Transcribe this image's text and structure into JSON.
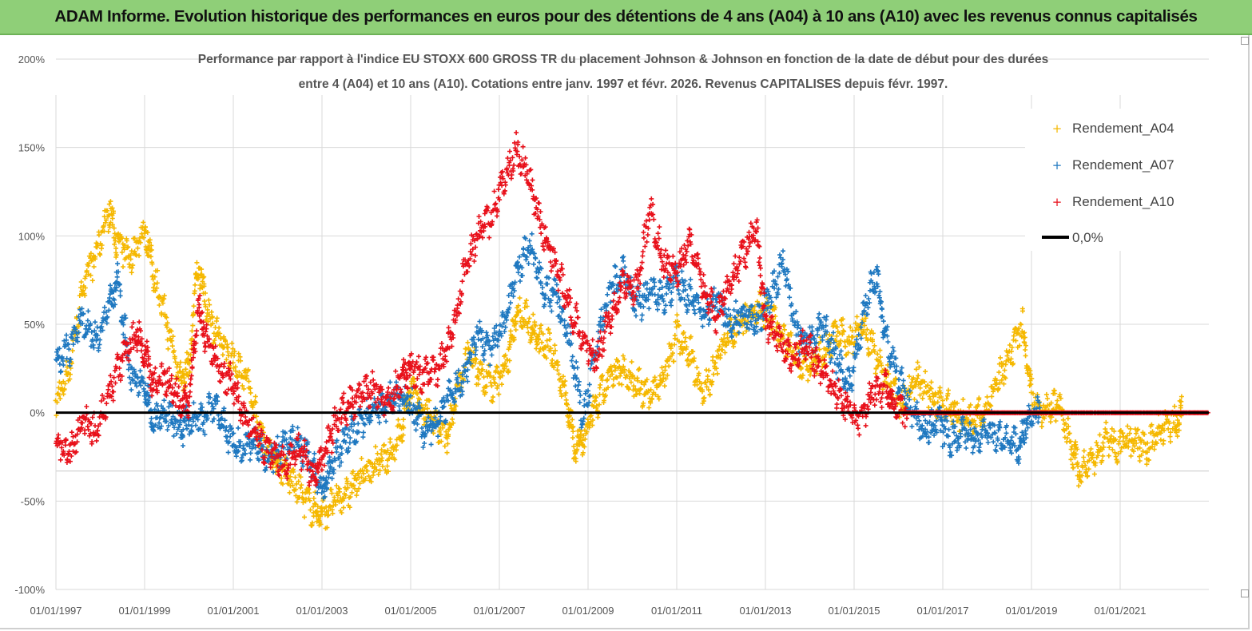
{
  "banner": {
    "title": "ADAM Informe. Evolution historique des performances en euros pour des détentions de 4 ans (A04) à 10 ans (A10) avec les revenus connus capitalisés"
  },
  "chart_data": {
    "type": "scatter",
    "title_line1": "Performance par rapport à l'indice EU STOXX 600 GROSS TR  du placement Johnson & Johnson en fonction de la date de début pour des durées",
    "title_line2": "entre 4 (A04) et 10 ans (A10). Cotations entre janv. 1997 et févr. 2026. Revenus CAPITALISES depuis févr. 1997.",
    "xlabel": "",
    "ylabel": "",
    "xlim": [
      1997.0,
      2023.0
    ],
    "ylim": [
      -100,
      200
    ],
    "x_tick_labels": [
      "01/01/1997",
      "01/01/1999",
      "01/01/2001",
      "01/01/2003",
      "01/01/2005",
      "01/01/2007",
      "01/01/2009",
      "01/01/2011",
      "01/01/2013",
      "01/01/2015",
      "01/01/2017",
      "01/01/2019",
      "01/01/2021"
    ],
    "x_tick_values": [
      1997,
      1999,
      2001,
      2003,
      2005,
      2007,
      2009,
      2011,
      2013,
      2015,
      2017,
      2019,
      2021
    ],
    "y_tick_labels": [
      "200%",
      "150%",
      "100%",
      "50%",
      "0%",
      "-50%",
      "-100%"
    ],
    "y_tick_values": [
      200,
      150,
      100,
      50,
      0,
      -50,
      -100
    ],
    "legend": {
      "position": "top-right",
      "entries": [
        "Rendement_A04",
        "Rendement_A07",
        "Rendement_A10",
        "0,0%"
      ]
    },
    "colors": {
      "A04": "#f5b800",
      "A07": "#1f78c0",
      "A10": "#e8101a",
      "zero_line": "#000000"
    },
    "series": [
      {
        "name": "Rendement_A04",
        "color": "#f5b800",
        "points": [
          [
            1997.0,
            5
          ],
          [
            1997.3,
            25
          ],
          [
            1997.6,
            70
          ],
          [
            1997.9,
            90
          ],
          [
            1998.2,
            115
          ],
          [
            1998.4,
            95
          ],
          [
            1998.7,
            88
          ],
          [
            1999.0,
            105
          ],
          [
            1999.2,
            80
          ],
          [
            1999.5,
            50
          ],
          [
            1999.8,
            20
          ],
          [
            2000.0,
            25
          ],
          [
            2000.2,
            85
          ],
          [
            2000.4,
            60
          ],
          [
            2000.7,
            40
          ],
          [
            2001.0,
            30
          ],
          [
            2001.3,
            20
          ],
          [
            2001.6,
            -10
          ],
          [
            2001.9,
            -25
          ],
          [
            2002.2,
            -35
          ],
          [
            2002.5,
            -45
          ],
          [
            2002.8,
            -55
          ],
          [
            2003.0,
            -58
          ],
          [
            2003.3,
            -50
          ],
          [
            2003.6,
            -45
          ],
          [
            2003.9,
            -35
          ],
          [
            2004.2,
            -30
          ],
          [
            2004.5,
            -25
          ],
          [
            2004.8,
            -10
          ],
          [
            2005.0,
            15
          ],
          [
            2005.2,
            5
          ],
          [
            2005.5,
            -5
          ],
          [
            2005.8,
            -15
          ],
          [
            2006.0,
            5
          ],
          [
            2006.3,
            35
          ],
          [
            2006.6,
            20
          ],
          [
            2006.9,
            15
          ],
          [
            2007.2,
            30
          ],
          [
            2007.4,
            60
          ],
          [
            2007.7,
            50
          ],
          [
            2007.9,
            40
          ],
          [
            2008.2,
            35
          ],
          [
            2008.5,
            10
          ],
          [
            2008.7,
            -20
          ],
          [
            2008.9,
            -15
          ],
          [
            2009.2,
            5
          ],
          [
            2009.5,
            20
          ],
          [
            2009.8,
            25
          ],
          [
            2010.1,
            15
          ],
          [
            2010.4,
            10
          ],
          [
            2010.7,
            20
          ],
          [
            2011.0,
            45
          ],
          [
            2011.3,
            35
          ],
          [
            2011.6,
            10
          ],
          [
            2011.9,
            30
          ],
          [
            2012.2,
            45
          ],
          [
            2012.5,
            50
          ],
          [
            2012.8,
            60
          ],
          [
            2013.1,
            55
          ],
          [
            2013.4,
            45
          ],
          [
            2013.7,
            30
          ],
          [
            2014.0,
            25
          ],
          [
            2014.3,
            35
          ],
          [
            2014.6,
            45
          ],
          [
            2014.9,
            40
          ],
          [
            2015.2,
            50
          ],
          [
            2015.5,
            30
          ],
          [
            2015.8,
            15
          ],
          [
            2016.1,
            5
          ],
          [
            2016.4,
            20
          ],
          [
            2016.7,
            10
          ],
          [
            2017.0,
            5
          ],
          [
            2017.3,
            0
          ],
          [
            2017.6,
            -5
          ],
          [
            2017.9,
            0
          ],
          [
            2018.2,
            15
          ],
          [
            2018.5,
            30
          ],
          [
            2018.8,
            50
          ],
          [
            2019.0,
            10
          ],
          [
            2019.3,
            0
          ],
          [
            2019.6,
            5
          ],
          [
            2019.9,
            -20
          ],
          [
            2020.1,
            -35
          ],
          [
            2020.4,
            -25
          ],
          [
            2020.7,
            -15
          ],
          [
            2021.0,
            -20
          ],
          [
            2021.3,
            -15
          ],
          [
            2021.6,
            -20
          ],
          [
            2021.9,
            -10
          ],
          [
            2022.2,
            -5
          ],
          [
            2022.4,
            0
          ]
        ]
      },
      {
        "name": "Rendement_A07",
        "color": "#1f78c0",
        "points": [
          [
            1997.0,
            30
          ],
          [
            1997.3,
            35
          ],
          [
            1997.6,
            55
          ],
          [
            1997.9,
            40
          ],
          [
            1998.2,
            60
          ],
          [
            1998.4,
            75
          ],
          [
            1998.7,
            20
          ],
          [
            1999.0,
            15
          ],
          [
            1999.2,
            -5
          ],
          [
            1999.5,
            0
          ],
          [
            1999.8,
            -10
          ],
          [
            2000.0,
            -5
          ],
          [
            2000.3,
            -5
          ],
          [
            2000.6,
            5
          ],
          [
            2000.9,
            -15
          ],
          [
            2001.2,
            -20
          ],
          [
            2001.5,
            -15
          ],
          [
            2001.8,
            -25
          ],
          [
            2002.1,
            -20
          ],
          [
            2002.4,
            -15
          ],
          [
            2002.7,
            -25
          ],
          [
            2003.0,
            -45
          ],
          [
            2003.2,
            -30
          ],
          [
            2003.5,
            -15
          ],
          [
            2003.8,
            -10
          ],
          [
            2004.1,
            0
          ],
          [
            2004.4,
            5
          ],
          [
            2004.7,
            10
          ],
          [
            2005.0,
            5
          ],
          [
            2005.3,
            -10
          ],
          [
            2005.6,
            -5
          ],
          [
            2005.9,
            10
          ],
          [
            2006.2,
            20
          ],
          [
            2006.5,
            45
          ],
          [
            2006.8,
            35
          ],
          [
            2007.1,
            50
          ],
          [
            2007.4,
            80
          ],
          [
            2007.7,
            95
          ],
          [
            2008.0,
            70
          ],
          [
            2008.3,
            65
          ],
          [
            2008.6,
            40
          ],
          [
            2008.9,
            -5
          ],
          [
            2009.2,
            40
          ],
          [
            2009.5,
            70
          ],
          [
            2009.8,
            80
          ],
          [
            2010.1,
            60
          ],
          [
            2010.4,
            70
          ],
          [
            2010.7,
            65
          ],
          [
            2011.0,
            75
          ],
          [
            2011.3,
            65
          ],
          [
            2011.6,
            55
          ],
          [
            2011.9,
            65
          ],
          [
            2012.2,
            50
          ],
          [
            2012.5,
            55
          ],
          [
            2012.8,
            50
          ],
          [
            2013.1,
            65
          ],
          [
            2013.4,
            85
          ],
          [
            2013.7,
            45
          ],
          [
            2014.0,
            40
          ],
          [
            2014.3,
            50
          ],
          [
            2014.6,
            30
          ],
          [
            2014.9,
            15
          ],
          [
            2015.2,
            55
          ],
          [
            2015.5,
            80
          ],
          [
            2015.7,
            45
          ],
          [
            2016.0,
            20
          ],
          [
            2016.3,
            0
          ],
          [
            2016.6,
            -10
          ],
          [
            2016.9,
            -5
          ],
          [
            2017.2,
            -15
          ],
          [
            2017.5,
            -10
          ],
          [
            2017.8,
            -15
          ],
          [
            2018.1,
            -10
          ],
          [
            2018.4,
            -15
          ],
          [
            2018.7,
            -20
          ],
          [
            2018.9,
            -5
          ],
          [
            2019.2,
            0
          ]
        ]
      },
      {
        "name": "Rendement_A10",
        "color": "#e8101a",
        "points": [
          [
            1997.0,
            -15
          ],
          [
            1997.3,
            -25
          ],
          [
            1997.6,
            -5
          ],
          [
            1997.9,
            -10
          ],
          [
            1998.2,
            10
          ],
          [
            1998.5,
            30
          ],
          [
            1998.8,
            45
          ],
          [
            1999.0,
            35
          ],
          [
            1999.2,
            15
          ],
          [
            1999.5,
            20
          ],
          [
            1999.8,
            5
          ],
          [
            2000.0,
            5
          ],
          [
            2000.2,
            60
          ],
          [
            2000.4,
            40
          ],
          [
            2000.7,
            25
          ],
          [
            2001.0,
            15
          ],
          [
            2001.3,
            -5
          ],
          [
            2001.6,
            -15
          ],
          [
            2001.9,
            -25
          ],
          [
            2002.2,
            -30
          ],
          [
            2002.5,
            -20
          ],
          [
            2002.8,
            -35
          ],
          [
            2003.0,
            -30
          ],
          [
            2003.3,
            -5
          ],
          [
            2003.6,
            5
          ],
          [
            2003.9,
            10
          ],
          [
            2004.2,
            15
          ],
          [
            2004.5,
            5
          ],
          [
            2004.8,
            20
          ],
          [
            2005.0,
            25
          ],
          [
            2005.3,
            20
          ],
          [
            2005.6,
            25
          ],
          [
            2005.9,
            40
          ],
          [
            2006.2,
            80
          ],
          [
            2006.5,
            100
          ],
          [
            2006.8,
            110
          ],
          [
            2007.1,
            130
          ],
          [
            2007.4,
            150
          ],
          [
            2007.7,
            130
          ],
          [
            2008.0,
            100
          ],
          [
            2008.3,
            80
          ],
          [
            2008.6,
            60
          ],
          [
            2008.9,
            40
          ],
          [
            2009.2,
            30
          ],
          [
            2009.5,
            55
          ],
          [
            2009.8,
            75
          ],
          [
            2010.1,
            70
          ],
          [
            2010.4,
            115
          ],
          [
            2010.7,
            85
          ],
          [
            2011.0,
            80
          ],
          [
            2011.3,
            100
          ],
          [
            2011.6,
            70
          ],
          [
            2011.9,
            55
          ],
          [
            2012.2,
            75
          ],
          [
            2012.5,
            90
          ],
          [
            2012.8,
            105
          ],
          [
            2013.0,
            50
          ],
          [
            2013.3,
            40
          ],
          [
            2013.6,
            30
          ],
          [
            2013.9,
            40
          ],
          [
            2014.2,
            25
          ],
          [
            2014.5,
            15
          ],
          [
            2014.8,
            5
          ],
          [
            2015.1,
            -5
          ],
          [
            2015.4,
            10
          ],
          [
            2015.7,
            15
          ],
          [
            2015.9,
            5
          ],
          [
            2016.2,
            0
          ],
          [
            2016.5,
            0
          ],
          [
            2017.0,
            0
          ],
          [
            2017.5,
            0
          ],
          [
            2018.0,
            0
          ],
          [
            2018.5,
            0
          ],
          [
            2019.0,
            0
          ],
          [
            2019.5,
            0
          ],
          [
            2020.0,
            0
          ],
          [
            2020.5,
            0
          ],
          [
            2021.0,
            0
          ],
          [
            2021.5,
            0
          ],
          [
            2022.0,
            0
          ],
          [
            2022.5,
            0
          ],
          [
            2023.0,
            0
          ]
        ]
      }
    ]
  }
}
